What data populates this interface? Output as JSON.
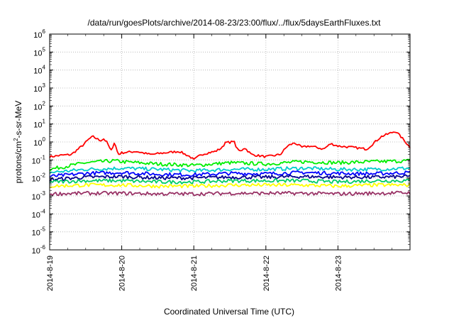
{
  "chart_data": {
    "type": "line",
    "title": "/data/run/goesPlots/archive/2014-08-23/23:00/flux/../flux/5daysEarthFluxes.txt",
    "xlabel": "Coordinated Universal Time (UTC)",
    "ylabel": "protons/cm²-s-sr-MeV",
    "ylabel_parts": {
      "pre": "protons/cm",
      "sup": "2",
      "post": "-s-sr-MeV"
    },
    "yscale": "log",
    "ylim_exponent": [
      -6,
      6
    ],
    "y_tick_base": "10",
    "y_tick_exponents": [
      "-6",
      "-5",
      "-4",
      "-3",
      "-2",
      "-1",
      "0",
      "1",
      "2",
      "3",
      "4",
      "5",
      "6"
    ],
    "x_tick_labels": [
      "2014-8-19",
      "2014-8-20",
      "2014-8-21",
      "2014-8-22",
      "2014-8-23"
    ],
    "x_days_range": [
      0,
      5
    ],
    "grid": true,
    "series": [
      {
        "color": "#ff0000",
        "x": [
          0,
          0.15,
          0.3,
          0.45,
          0.55,
          0.6,
          0.7,
          0.75,
          0.8,
          0.85,
          0.9,
          0.95,
          1.0,
          1.2,
          1.4,
          1.6,
          1.8,
          1.95,
          2.0,
          2.1,
          2.2,
          2.3,
          2.4,
          2.45,
          2.5,
          2.55,
          2.6,
          2.65,
          2.7,
          2.8,
          3.0,
          3.2,
          3.3,
          3.4,
          3.5,
          3.6,
          3.7,
          3.8,
          3.9,
          4.0,
          4.2,
          4.4,
          4.6,
          4.8,
          4.9,
          5.0
        ],
        "y": [
          0.15,
          0.18,
          0.2,
          0.6,
          1.5,
          2.0,
          1.2,
          1.5,
          0.9,
          0.3,
          1.0,
          0.2,
          0.25,
          0.3,
          0.2,
          0.25,
          0.3,
          0.15,
          0.1,
          0.2,
          0.25,
          0.3,
          0.5,
          1.2,
          0.8,
          1.3,
          0.4,
          0.3,
          0.5,
          0.2,
          0.15,
          0.2,
          0.6,
          0.9,
          0.5,
          0.6,
          0.5,
          0.4,
          0.8,
          0.6,
          0.5,
          0.4,
          2.0,
          4.0,
          1.5,
          0.5
        ]
      },
      {
        "color": "#00ee00",
        "x": [
          0,
          0.5,
          0.9,
          1.0,
          1.5,
          2.0,
          2.5,
          3.0,
          3.5,
          4.0,
          4.5,
          5.0
        ],
        "y": [
          0.03,
          0.07,
          0.09,
          0.08,
          0.06,
          0.05,
          0.07,
          0.06,
          0.08,
          0.07,
          0.08,
          0.09
        ]
      },
      {
        "color": "#00cccc",
        "x": [
          0,
          0.5,
          1.0,
          1.5,
          2.0,
          2.5,
          3.0,
          3.5,
          4.0,
          4.5,
          5.0
        ],
        "y": [
          0.02,
          0.03,
          0.035,
          0.03,
          0.025,
          0.03,
          0.03,
          0.035,
          0.03,
          0.03,
          0.035
        ]
      },
      {
        "color": "#0000ff",
        "x": [
          0,
          0.5,
          1.0,
          1.5,
          2.0,
          2.5,
          3.0,
          3.5,
          4.0,
          4.5,
          5.0
        ],
        "y": [
          0.012,
          0.018,
          0.02,
          0.016,
          0.015,
          0.018,
          0.017,
          0.02,
          0.018,
          0.017,
          0.02
        ]
      },
      {
        "color": "#000090",
        "x": [
          0,
          0.5,
          1.0,
          1.5,
          2.0,
          2.5,
          3.0,
          3.5,
          4.0,
          4.5,
          5.0
        ],
        "y": [
          0.008,
          0.011,
          0.012,
          0.01,
          0.01,
          0.011,
          0.011,
          0.012,
          0.011,
          0.011,
          0.012
        ]
      },
      {
        "color": "#00cc66",
        "x": [
          0,
          0.5,
          1.0,
          1.5,
          2.0,
          2.5,
          3.0,
          3.5,
          4.0,
          4.5,
          5.0
        ],
        "y": [
          0.006,
          0.007,
          0.007,
          0.006,
          0.006,
          0.007,
          0.007,
          0.007,
          0.006,
          0.007,
          0.007
        ]
      },
      {
        "color": "#ffff00",
        "x": [
          0,
          0.5,
          1.0,
          1.5,
          2.0,
          2.5,
          3.0,
          3.5,
          4.0,
          4.5,
          5.0
        ],
        "y": [
          0.0035,
          0.004,
          0.004,
          0.0035,
          0.0035,
          0.004,
          0.004,
          0.004,
          0.0035,
          0.004,
          0.004
        ]
      },
      {
        "color": "#993366",
        "x": [
          0,
          0.5,
          1.0,
          1.5,
          2.0,
          2.5,
          3.0,
          3.5,
          4.0,
          4.5,
          5.0
        ],
        "y": [
          0.0013,
          0.0014,
          0.0014,
          0.0013,
          0.0013,
          0.0014,
          0.0014,
          0.0014,
          0.0013,
          0.0014,
          0.0015
        ]
      }
    ]
  }
}
